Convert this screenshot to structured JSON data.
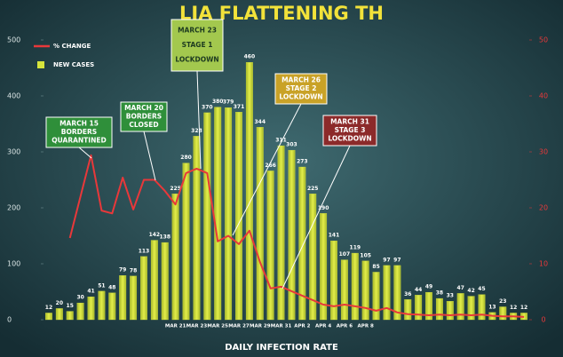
{
  "chart_data": {
    "type": "bar",
    "title": "LIA FLATTENING TH",
    "x_label": "DAILY INFECTION RATE",
    "categories": [
      null,
      null,
      null,
      null,
      null,
      null,
      null,
      null,
      null,
      null,
      null,
      null,
      "MAR 21",
      null,
      "MAR 23",
      null,
      "MAR 25",
      null,
      "MAR 27",
      null,
      "MAR 29",
      null,
      "MAR 31",
      null,
      "APR 2",
      null,
      "APR 4",
      null,
      "APR 6",
      null,
      "APR 8",
      null,
      null,
      null,
      null,
      null,
      null,
      null,
      null,
      null,
      null,
      null,
      null,
      null,
      null,
      null
    ],
    "series": [
      {
        "name": "NEW CASES",
        "color": "#d6e43c",
        "values": [
          12,
          20,
          15,
          30,
          41,
          51,
          48,
          79,
          78,
          113,
          142,
          138,
          225,
          280,
          328,
          370,
          380,
          379,
          371,
          460,
          344,
          266,
          311,
          303,
          273,
          225,
          190,
          141,
          107,
          119,
          105,
          85,
          97,
          97,
          36,
          44,
          49,
          38,
          33,
          47,
          42,
          45,
          13,
          23,
          12,
          12
        ]
      },
      {
        "name": "% CHANGE",
        "color": "#e8383a",
        "type": "line",
        "axis": "y2",
        "values": [
          null,
          null,
          14.6,
          22,
          29.4,
          19.5,
          19,
          25.4,
          19.7,
          25,
          25,
          23,
          20.6,
          26.2,
          27,
          26.2,
          14,
          15,
          13.5,
          15.9,
          10.3,
          5.6,
          5.9,
          5.1,
          4.3,
          3.5,
          2.7,
          2.4,
          2.7,
          2.4,
          2.1,
          1.6,
          2.1,
          1.3,
          1,
          0.9,
          0.8,
          0.9,
          0.8,
          0.9,
          0.8,
          0.9,
          0.7,
          0.6,
          0.6,
          0.5
        ]
      }
    ],
    "ylim": [
      0,
      500
    ],
    "yticks": [
      0,
      100,
      200,
      300,
      400,
      500
    ],
    "y2lim": [
      0,
      50
    ],
    "y2ticks": [
      0,
      10,
      20,
      30,
      40,
      50
    ],
    "legend": "top-left",
    "annotations": [
      {
        "lines": [
          "MARCH 15",
          "BORDERS",
          "QUARANTINED"
        ],
        "color": "#2f8f3a"
      },
      {
        "lines": [
          "MARCH 20",
          "BORDERS",
          "CLOSED"
        ],
        "color": "#2f8f3a"
      },
      {
        "lines": [
          "MARCH 23",
          "STAGE 1",
          "LOCKDOWN"
        ],
        "color": "#a3c84e"
      },
      {
        "lines": [
          "MARCH 26",
          "STAGE 2",
          "LOCKDOWN"
        ],
        "color": "#c9a227"
      },
      {
        "lines": [
          "MARCH 31",
          "STAGE 3",
          "LOCKDOWN"
        ],
        "color": "#8c2a2a"
      }
    ]
  }
}
